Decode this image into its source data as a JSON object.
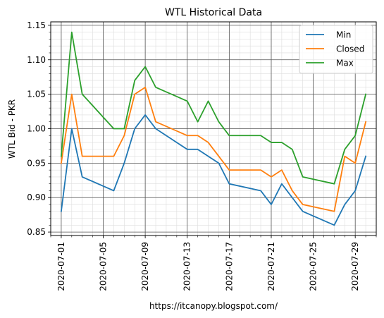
{
  "chart_data": {
    "type": "line",
    "title": "WTL Historical Data",
    "xlabel": "",
    "ylabel": "WTL Bid - PKR",
    "footer": "https://itcanopy.blogspot.com/",
    "xlim": [
      "2020-06-30",
      "2020-07-31"
    ],
    "ylim": [
      0.845,
      1.155
    ],
    "y_ticks": [
      0.85,
      0.9,
      0.95,
      1.0,
      1.05,
      1.1,
      1.15
    ],
    "x_ticks": [
      "2020-07-01",
      "2020-07-05",
      "2020-07-09",
      "2020-07-13",
      "2020-07-17",
      "2020-07-21",
      "2020-07-25",
      "2020-07-29"
    ],
    "grid": true,
    "legend_position": "top-right",
    "series": [
      {
        "name": "Min",
        "color": "#1f77b4",
        "x": [
          "2020-07-01",
          "2020-07-02",
          "2020-07-03",
          "2020-07-06",
          "2020-07-07",
          "2020-07-08",
          "2020-07-09",
          "2020-07-10",
          "2020-07-13",
          "2020-07-14",
          "2020-07-16",
          "2020-07-17",
          "2020-07-20",
          "2020-07-21",
          "2020-07-22",
          "2020-07-23",
          "2020-07-24",
          "2020-07-27",
          "2020-07-28",
          "2020-07-29",
          "2020-07-30"
        ],
        "values": [
          0.88,
          1.0,
          0.93,
          0.91,
          0.95,
          1.0,
          1.02,
          1.0,
          0.97,
          0.97,
          0.95,
          0.92,
          0.91,
          0.89,
          0.92,
          0.9,
          0.88,
          0.86,
          0.89,
          0.91,
          0.96
        ]
      },
      {
        "name": "Closed",
        "color": "#ff7f0e",
        "x": [
          "2020-07-01",
          "2020-07-02",
          "2020-07-03",
          "2020-07-06",
          "2020-07-07",
          "2020-07-08",
          "2020-07-09",
          "2020-07-10",
          "2020-07-13",
          "2020-07-14",
          "2020-07-15",
          "2020-07-16",
          "2020-07-17",
          "2020-07-20",
          "2020-07-21",
          "2020-07-22",
          "2020-07-23",
          "2020-07-24",
          "2020-07-27",
          "2020-07-28",
          "2020-07-29",
          "2020-07-30"
        ],
        "values": [
          0.95,
          1.05,
          0.96,
          0.96,
          0.99,
          1.05,
          1.06,
          1.01,
          0.99,
          0.99,
          0.98,
          0.96,
          0.94,
          0.94,
          0.93,
          0.94,
          0.91,
          0.89,
          0.88,
          0.96,
          0.95,
          1.01
        ]
      },
      {
        "name": "Max",
        "color": "#2ca02c",
        "x": [
          "2020-07-01",
          "2020-07-02",
          "2020-07-03",
          "2020-07-06",
          "2020-07-07",
          "2020-07-08",
          "2020-07-09",
          "2020-07-10",
          "2020-07-13",
          "2020-07-14",
          "2020-07-15",
          "2020-07-16",
          "2020-07-17",
          "2020-07-20",
          "2020-07-21",
          "2020-07-22",
          "2020-07-23",
          "2020-07-24",
          "2020-07-27",
          "2020-07-28",
          "2020-07-29",
          "2020-07-30"
        ],
        "values": [
          0.96,
          1.14,
          1.05,
          1.0,
          1.0,
          1.07,
          1.09,
          1.06,
          1.04,
          1.01,
          1.04,
          1.01,
          0.99,
          0.99,
          0.98,
          0.98,
          0.97,
          0.93,
          0.92,
          0.97,
          0.99,
          1.05
        ]
      }
    ]
  }
}
